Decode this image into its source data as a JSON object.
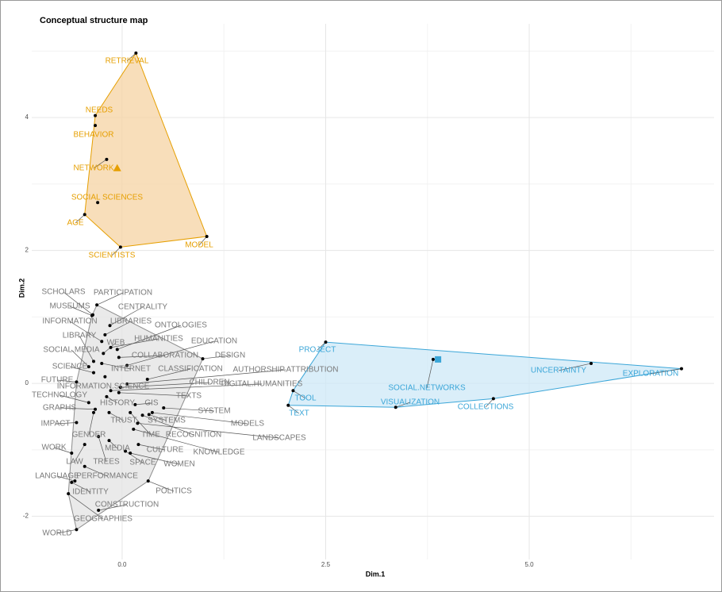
{
  "chart_data": {
    "type": "scatter",
    "title": "Conceptual structure map",
    "x_label": "Dim.1",
    "y_label": "Dim.2",
    "xlim": [
      -1.11,
      7.27
    ],
    "ylim": [
      -2.65,
      5.41
    ],
    "xticks": [
      {
        "value": 0,
        "label": "0.0"
      },
      {
        "value": 2.5,
        "label": "2.5"
      },
      {
        "value": 5,
        "label": "5.0"
      }
    ],
    "yticks": [
      -2,
      0,
      2,
      4
    ],
    "grid": true,
    "clusters": [
      {
        "color": "#e69f00",
        "fill": "#f5d3a3",
        "centroid_shape": "triangle",
        "centroid": {
          "x": -0.06,
          "y": 3.24
        },
        "labels": [
          "RETRIEVAL",
          "NEEDS",
          "BEHAVIOR",
          "NETWORK",
          "SOCIAL SCIENCES",
          "AGE",
          "SCIENTISTS",
          "MODEL"
        ],
        "x": [
          0.17,
          -0.33,
          -0.33,
          -0.19,
          -0.3,
          -0.46,
          -0.02,
          1.04
        ],
        "y": [
          4.97,
          4.03,
          3.88,
          3.37,
          2.72,
          2.54,
          2.05,
          2.21
        ]
      },
      {
        "color": "#3ba6d8",
        "fill": "#cde8f7",
        "centroid_shape": "square",
        "centroid": {
          "x": 3.88,
          "y": 0.36
        },
        "labels": [
          "PROJECT",
          "UNCERTAINTY",
          "EXPLORATION",
          "SOCIAL.NETWORKS",
          "COLLECTIONS",
          "VISUALIZATION",
          "TOOL",
          "TEXT"
        ],
        "x": [
          2.5,
          5.76,
          6.87,
          3.82,
          4.56,
          3.36,
          2.1,
          2.04
        ],
        "y": [
          0.62,
          0.3,
          0.22,
          0.36,
          -0.23,
          -0.36,
          -0.11,
          -0.33
        ]
      },
      {
        "color": "#8c8c8c",
        "fill": "#e3e3e3",
        "labels": [
          "SCHOLARS",
          "PARTICIPATION",
          "MUSEUMS",
          "CENTRALITY",
          "INFORMATION",
          "LIBRARIES",
          "ONTOLOGIES",
          "LIBRARY",
          "WEB",
          "HUMANITIES",
          "EDUCATION",
          "SOCIAL.MEDIA",
          "COLLABORATION",
          "DESIGN",
          "SCIENCE",
          "INTERNET",
          "CLASSIFICATION",
          "AUTHORSHIP.ATTRIBUTION",
          "FUTURE",
          "CHILDREN",
          "DIGITAL.HUMANITIES",
          "INFORMATION.SCIENCE",
          "TECHNOLOGY",
          "TEXTS",
          "HISTORY",
          "GIS",
          "GRAPHS",
          "SYSTEM",
          "SYSTEMS",
          "TRUST",
          "MODELS",
          "IMPACT",
          "LANDSCAPES",
          "GENDER",
          "TIME",
          "RECOGNITION",
          "KNOWLEDGE",
          "WORK",
          "MEDIA",
          "CULTURE",
          "LAW",
          "TREES",
          "SPACE",
          "WOMEN",
          "LANGUAGE",
          "PERFORMANCE",
          "POLITICS",
          "IDENTITY",
          "CONSTRUCTION",
          "GEOGRAPHIES",
          "WORLD"
        ],
        "x": [
          -0.36,
          -0.31,
          -0.37,
          -0.15,
          -0.25,
          -0.21,
          -0.06,
          -0.35,
          -0.23,
          -0.14,
          0.06,
          -0.41,
          -0.04,
          0.99,
          -0.35,
          -0.25,
          0.31,
          0.06,
          -0.56,
          -0.02,
          -0.14,
          -0.21,
          -0.41,
          -0.04,
          -0.19,
          0.16,
          -0.33,
          0.51,
          0.33,
          -0.16,
          0.37,
          -0.56,
          0.19,
          -0.35,
          0.1,
          0.25,
          0.14,
          -0.62,
          -0.16,
          0.2,
          -0.46,
          -0.29,
          0.04,
          0.1,
          -0.58,
          -0.46,
          0.32,
          -0.62,
          -0.29,
          -0.66,
          -0.56
        ],
        "y": [
          1.03,
          1.18,
          1.02,
          0.87,
          0.63,
          0.73,
          0.51,
          0.33,
          0.45,
          0.54,
          0.27,
          0.25,
          0.39,
          0.37,
          0.16,
          0.3,
          0.06,
          -0.01,
          0.02,
          -0.06,
          -0.11,
          0.1,
          -0.29,
          -0.14,
          -0.2,
          -0.32,
          -0.39,
          -0.37,
          -0.47,
          -0.44,
          -0.44,
          -0.59,
          -0.6,
          -0.44,
          -0.44,
          -0.48,
          -0.69,
          -1.05,
          -0.86,
          -0.92,
          -0.92,
          -0.8,
          -1.02,
          -1.05,
          -1.47,
          -1.25,
          -1.47,
          -1.49,
          -1.91,
          -1.66,
          -2.2
        ]
      }
    ]
  }
}
